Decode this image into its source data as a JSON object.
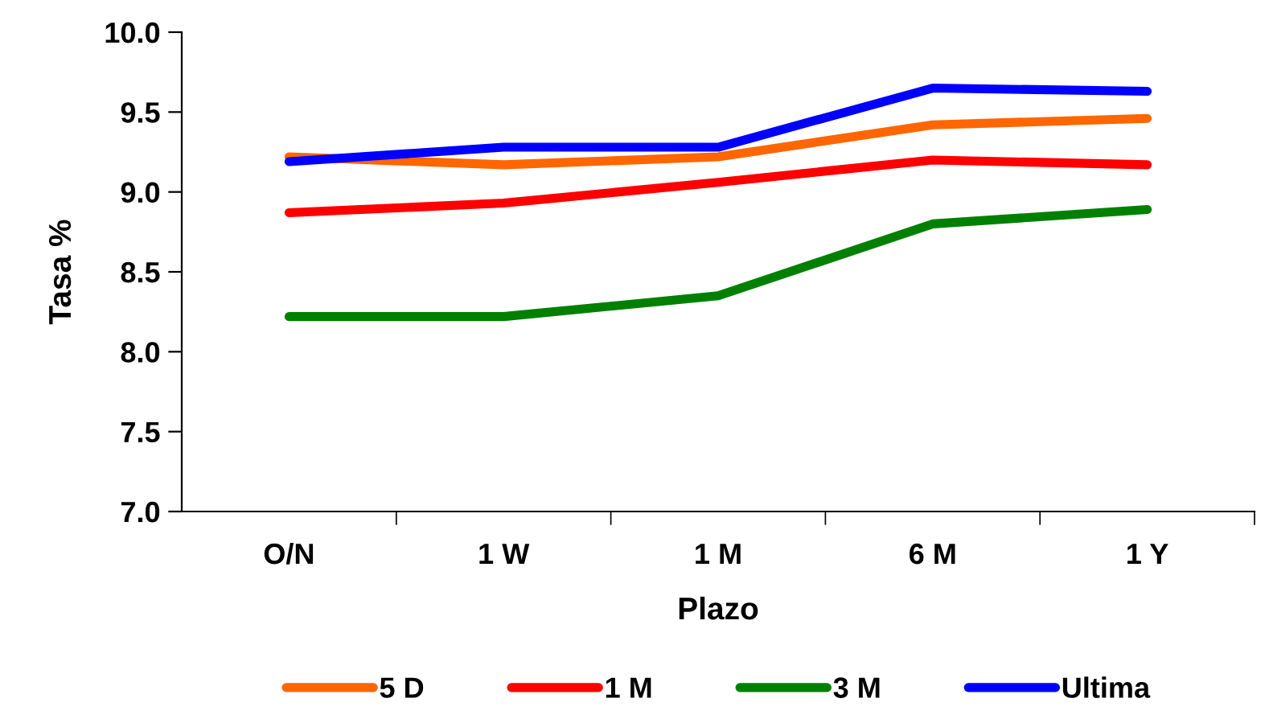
{
  "chart_data": {
    "type": "line",
    "xlabel": "Plazo",
    "ylabel": "Tasa %",
    "categories": [
      "O/N",
      "1 W",
      "1 M",
      "6 M",
      "1 Y"
    ],
    "series": [
      {
        "name": "5 D",
        "color": "#ff6600",
        "values": [
          9.22,
          9.17,
          9.22,
          9.42,
          9.46
        ]
      },
      {
        "name": "1 M",
        "color": "#ff0000",
        "values": [
          8.87,
          8.93,
          9.06,
          9.2,
          9.17
        ]
      },
      {
        "name": "3 M",
        "color": "#008000",
        "values": [
          8.22,
          8.22,
          8.35,
          8.8,
          8.89
        ]
      },
      {
        "name": "Ultima",
        "color": "#0000ff",
        "values": [
          9.19,
          9.28,
          9.28,
          9.65,
          9.63
        ]
      }
    ],
    "ylim": [
      7.0,
      10.0
    ],
    "yticks": [
      {
        "value": 7,
        "label": "7.0"
      },
      {
        "value": 7.5,
        "label": "7.5"
      },
      {
        "value": 8,
        "label": "8.0"
      },
      {
        "value": 8.5,
        "label": "8.5"
      },
      {
        "value": 9,
        "label": "9.0"
      },
      {
        "value": 9.5,
        "label": "9.5"
      },
      {
        "value": 10,
        "label": "10.0"
      }
    ],
    "grid": false,
    "legend": "bottom",
    "marker": "none",
    "line_style": "solid"
  }
}
